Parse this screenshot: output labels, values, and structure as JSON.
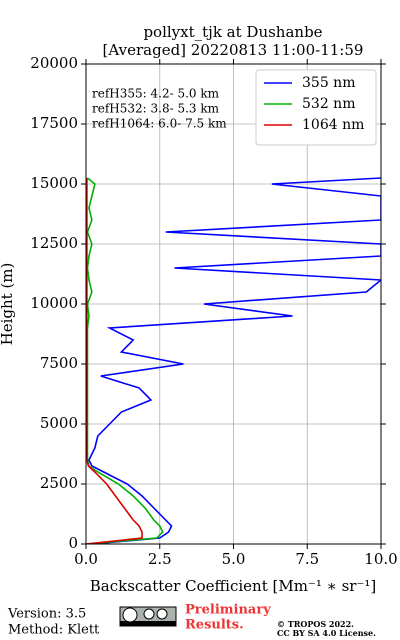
{
  "chart_data": {
    "type": "line",
    "title": "pollyxt_tjk at Dushanbe",
    "subtitle": "[Averaged] 20220813 11:00-11:59",
    "xlabel": "Backscatter Coefficient [Mm⁻¹ ∗ sr⁻¹]",
    "ylabel": "Height (m)",
    "annotations": [
      "refH355:  4.2- 5.0 km",
      "refH532:  3.8- 5.3 km",
      "refH1064:  6.0- 7.5 km"
    ],
    "xlim": [
      0,
      10
    ],
    "xticks": [
      {
        "value": 0,
        "label": "0.0"
      },
      {
        "value": 2.5,
        "label": "2.5"
      },
      {
        "value": 5,
        "label": "5.0"
      },
      {
        "value": 7.5,
        "label": "7.5"
      },
      {
        "value": 10,
        "label": "10.0"
      }
    ],
    "ylim": [
      0,
      20000
    ],
    "yticks": [
      0,
      2500,
      5000,
      7500,
      10000,
      12500,
      15000,
      17500,
      20000
    ],
    "grid": true,
    "legend": "upper right",
    "y": [
      0,
      250,
      500,
      750,
      1000,
      1500,
      2000,
      2500,
      3000,
      3250,
      3500,
      4000,
      4500,
      5000,
      5500,
      6000,
      6500,
      7000,
      7500,
      8000,
      8500,
      9000,
      9500,
      10000,
      10500,
      11000,
      11500,
      12000,
      12500,
      13000,
      13500,
      14000,
      14500,
      15000,
      15250
    ],
    "series": [
      {
        "name": "355 nm",
        "color": "#0000ff",
        "values": [
          0.2,
          2.5,
          2.8,
          2.9,
          2.7,
          2.3,
          1.9,
          1.4,
          0.6,
          0.2,
          0.1,
          0.3,
          0.4,
          0.8,
          1.2,
          2.2,
          1.8,
          0.5,
          3.3,
          1.2,
          1.6,
          0.8,
          7.0,
          4.0,
          9.5,
          10.0,
          3.0,
          10.0,
          10.0,
          2.7,
          10.0,
          10.0,
          10.0,
          6.3,
          10.0
        ]
      },
      {
        "name": "532 nm",
        "color": "#00b000",
        "values": [
          0.05,
          2.4,
          2.6,
          2.5,
          2.3,
          2.0,
          1.6,
          1.1,
          0.4,
          0.1,
          0.05,
          0.05,
          0.05,
          0.05,
          0.05,
          0.05,
          0.05,
          0.05,
          0.05,
          0.05,
          0.05,
          0.05,
          0.1,
          0.05,
          0.2,
          0.1,
          0.05,
          0.1,
          0.2,
          0.05,
          0.2,
          0.1,
          0.2,
          0.3,
          0.05
        ]
      },
      {
        "name": "1064 nm",
        "color": "#dd0000",
        "values": [
          0,
          1.9,
          1.9,
          1.8,
          1.6,
          1.3,
          1.0,
          0.7,
          0.3,
          0.08,
          0.03,
          0.03,
          0.03,
          0.03,
          0.03,
          0.03,
          0.03,
          0.03,
          0.03,
          0.03,
          0.03,
          0.03,
          0.03,
          0.03,
          0.03,
          0.03,
          0.03,
          0.03,
          0.03,
          0.03,
          0.03,
          0.03,
          0.03,
          0.03,
          0.03
        ]
      }
    ]
  },
  "footer": {
    "version": "Version: 3.5",
    "method": "Method: Klett",
    "preliminary": [
      "Preliminary",
      "Results."
    ],
    "license": [
      "© TROPOS 2022.",
      "CC BY SA 4.0 License."
    ]
  }
}
